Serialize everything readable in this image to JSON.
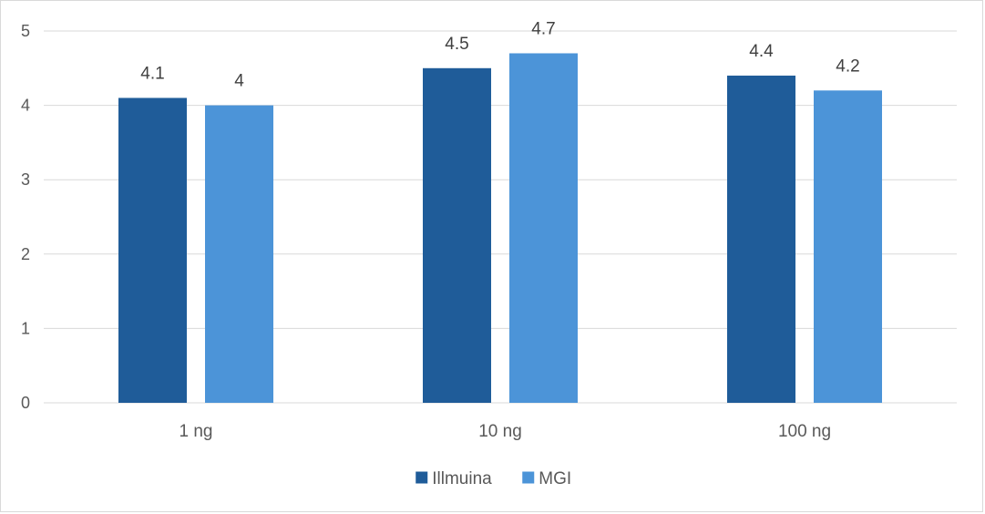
{
  "chart_data": {
    "type": "bar",
    "title": "",
    "xlabel": "",
    "ylabel": "",
    "categories": [
      "1 ng",
      "10 ng",
      "100 ng"
    ],
    "series": [
      {
        "name": "Illmuina",
        "values": [
          4.1,
          4.5,
          4.4
        ],
        "color": "#1f5c99"
      },
      {
        "name": "MGI",
        "values": [
          4,
          4.7,
          4.2
        ],
        "color": "#4c94d8"
      }
    ],
    "ylim": [
      0,
      5
    ],
    "yticks": [
      "0",
      "1",
      "2",
      "3",
      "4",
      "5"
    ],
    "data_labels": [
      [
        "4.1",
        "4.5",
        "4.4"
      ],
      [
        "4",
        "4.7",
        "4.2"
      ]
    ],
    "grid": true,
    "legend_position": "bottom",
    "colors": {
      "gridline": "#d9d9d9",
      "axis_text": "#595959",
      "frame": "#d9d9d9"
    }
  }
}
